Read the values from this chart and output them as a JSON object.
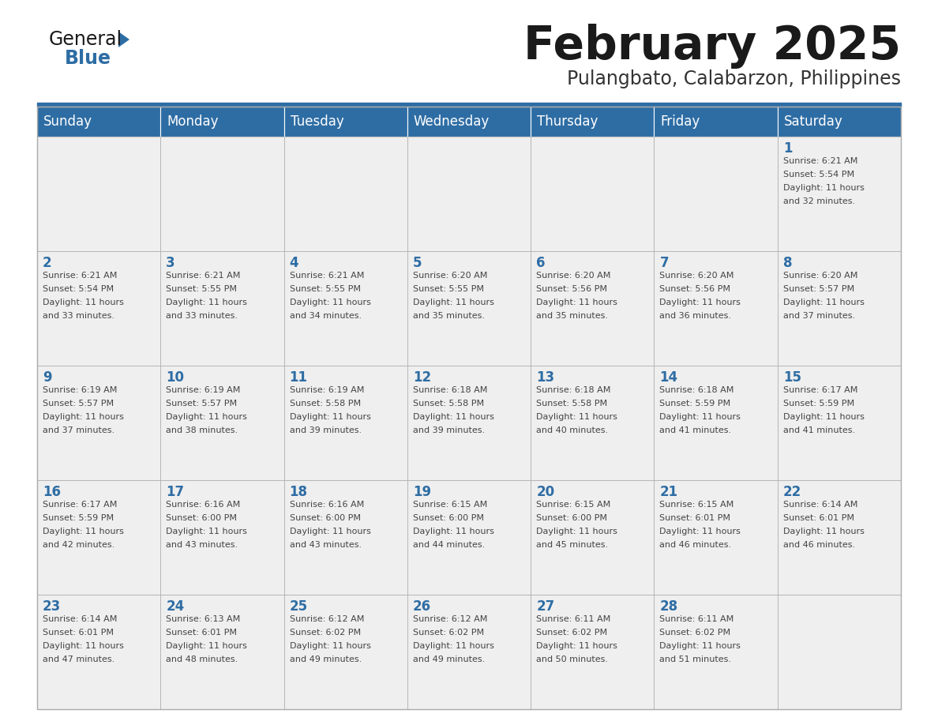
{
  "title": "February 2025",
  "subtitle": "Pulangbato, Calabarzon, Philippines",
  "header_bg": "#2E6DA4",
  "header_text": "#FFFFFF",
  "cell_bg": "#EFEFEF",
  "border_color": "#AAAAAA",
  "day_headers": [
    "Sunday",
    "Monday",
    "Tuesday",
    "Wednesday",
    "Thursday",
    "Friday",
    "Saturday"
  ],
  "title_color": "#1a1a1a",
  "subtitle_color": "#333333",
  "logo_color_general": "#1a1a1a",
  "logo_color_blue": "#2E6DA4",
  "weeks": [
    [
      {
        "day": null,
        "info": null
      },
      {
        "day": null,
        "info": null
      },
      {
        "day": null,
        "info": null
      },
      {
        "day": null,
        "info": null
      },
      {
        "day": null,
        "info": null
      },
      {
        "day": null,
        "info": null
      },
      {
        "day": 1,
        "info": "Sunrise: 6:21 AM\nSunset: 5:54 PM\nDaylight: 11 hours\nand 32 minutes."
      }
    ],
    [
      {
        "day": 2,
        "info": "Sunrise: 6:21 AM\nSunset: 5:54 PM\nDaylight: 11 hours\nand 33 minutes."
      },
      {
        "day": 3,
        "info": "Sunrise: 6:21 AM\nSunset: 5:55 PM\nDaylight: 11 hours\nand 33 minutes."
      },
      {
        "day": 4,
        "info": "Sunrise: 6:21 AM\nSunset: 5:55 PM\nDaylight: 11 hours\nand 34 minutes."
      },
      {
        "day": 5,
        "info": "Sunrise: 6:20 AM\nSunset: 5:55 PM\nDaylight: 11 hours\nand 35 minutes."
      },
      {
        "day": 6,
        "info": "Sunrise: 6:20 AM\nSunset: 5:56 PM\nDaylight: 11 hours\nand 35 minutes."
      },
      {
        "day": 7,
        "info": "Sunrise: 6:20 AM\nSunset: 5:56 PM\nDaylight: 11 hours\nand 36 minutes."
      },
      {
        "day": 8,
        "info": "Sunrise: 6:20 AM\nSunset: 5:57 PM\nDaylight: 11 hours\nand 37 minutes."
      }
    ],
    [
      {
        "day": 9,
        "info": "Sunrise: 6:19 AM\nSunset: 5:57 PM\nDaylight: 11 hours\nand 37 minutes."
      },
      {
        "day": 10,
        "info": "Sunrise: 6:19 AM\nSunset: 5:57 PM\nDaylight: 11 hours\nand 38 minutes."
      },
      {
        "day": 11,
        "info": "Sunrise: 6:19 AM\nSunset: 5:58 PM\nDaylight: 11 hours\nand 39 minutes."
      },
      {
        "day": 12,
        "info": "Sunrise: 6:18 AM\nSunset: 5:58 PM\nDaylight: 11 hours\nand 39 minutes."
      },
      {
        "day": 13,
        "info": "Sunrise: 6:18 AM\nSunset: 5:58 PM\nDaylight: 11 hours\nand 40 minutes."
      },
      {
        "day": 14,
        "info": "Sunrise: 6:18 AM\nSunset: 5:59 PM\nDaylight: 11 hours\nand 41 minutes."
      },
      {
        "day": 15,
        "info": "Sunrise: 6:17 AM\nSunset: 5:59 PM\nDaylight: 11 hours\nand 41 minutes."
      }
    ],
    [
      {
        "day": 16,
        "info": "Sunrise: 6:17 AM\nSunset: 5:59 PM\nDaylight: 11 hours\nand 42 minutes."
      },
      {
        "day": 17,
        "info": "Sunrise: 6:16 AM\nSunset: 6:00 PM\nDaylight: 11 hours\nand 43 minutes."
      },
      {
        "day": 18,
        "info": "Sunrise: 6:16 AM\nSunset: 6:00 PM\nDaylight: 11 hours\nand 43 minutes."
      },
      {
        "day": 19,
        "info": "Sunrise: 6:15 AM\nSunset: 6:00 PM\nDaylight: 11 hours\nand 44 minutes."
      },
      {
        "day": 20,
        "info": "Sunrise: 6:15 AM\nSunset: 6:00 PM\nDaylight: 11 hours\nand 45 minutes."
      },
      {
        "day": 21,
        "info": "Sunrise: 6:15 AM\nSunset: 6:01 PM\nDaylight: 11 hours\nand 46 minutes."
      },
      {
        "day": 22,
        "info": "Sunrise: 6:14 AM\nSunset: 6:01 PM\nDaylight: 11 hours\nand 46 minutes."
      }
    ],
    [
      {
        "day": 23,
        "info": "Sunrise: 6:14 AM\nSunset: 6:01 PM\nDaylight: 11 hours\nand 47 minutes."
      },
      {
        "day": 24,
        "info": "Sunrise: 6:13 AM\nSunset: 6:01 PM\nDaylight: 11 hours\nand 48 minutes."
      },
      {
        "day": 25,
        "info": "Sunrise: 6:12 AM\nSunset: 6:02 PM\nDaylight: 11 hours\nand 49 minutes."
      },
      {
        "day": 26,
        "info": "Sunrise: 6:12 AM\nSunset: 6:02 PM\nDaylight: 11 hours\nand 49 minutes."
      },
      {
        "day": 27,
        "info": "Sunrise: 6:11 AM\nSunset: 6:02 PM\nDaylight: 11 hours\nand 50 minutes."
      },
      {
        "day": 28,
        "info": "Sunrise: 6:11 AM\nSunset: 6:02 PM\nDaylight: 11 hours\nand 51 minutes."
      },
      {
        "day": null,
        "info": null
      }
    ]
  ],
  "fig_width": 11.88,
  "fig_height": 9.18,
  "dpi": 100
}
